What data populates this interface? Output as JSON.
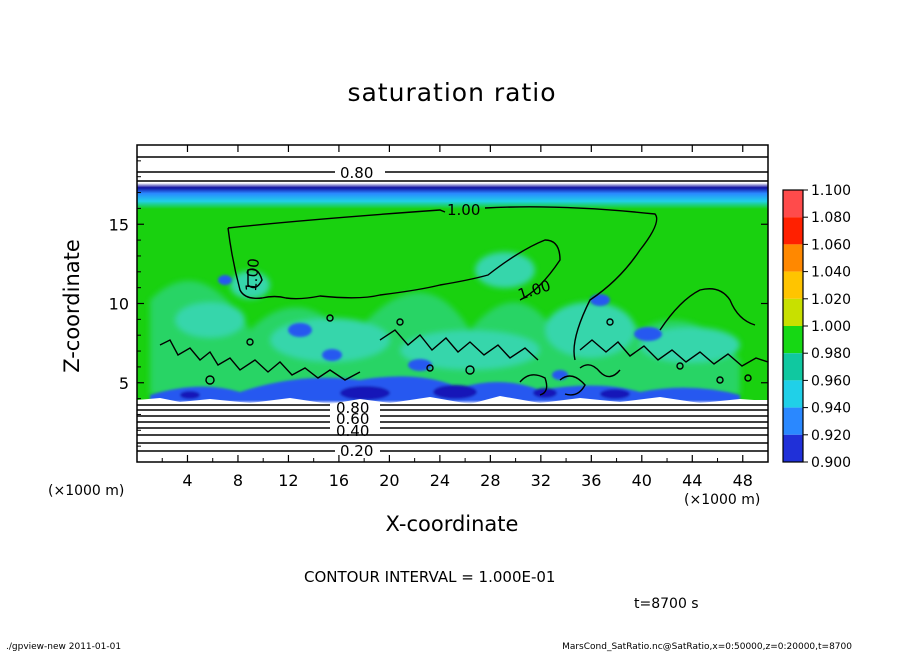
{
  "chart_data": {
    "type": "heatmap",
    "title": "saturation ratio",
    "xlabel": "X-coordinate",
    "ylabel": "Z-coordinate",
    "x_unit": "(×1000 m)",
    "z_unit": "(×1000 m)",
    "xlim": [
      0,
      50
    ],
    "ylim": [
      0,
      20
    ],
    "x_ticks": [
      "4",
      "8",
      "12",
      "16",
      "20",
      "24",
      "28",
      "32",
      "36",
      "40",
      "44",
      "48"
    ],
    "y_ticks": [
      "5",
      "10",
      "15"
    ],
    "colorbar": {
      "levels": [
        "1.100",
        "1.080",
        "1.060",
        "1.040",
        "1.020",
        "1.000",
        "0.980",
        "0.960",
        "0.940",
        "0.920",
        "0.900"
      ],
      "colors": [
        "#ff8c8c",
        "#ff4b4b",
        "#ff2000",
        "#ff8800",
        "#ffc400",
        "#c8e000",
        "#16d814",
        "#10c8a0",
        "#20d0e8",
        "#2a88ff",
        "#2030d8",
        "#1010a0",
        "#5a14a0"
      ]
    },
    "field": {
      "background_value": 1.0,
      "upper_boundary_km": 17.3,
      "lower_dry_layer_km": 3.8,
      "contour_labels": [
        "0.80",
        "1.00",
        "1.00",
        "1.00",
        "0.80",
        "0.60",
        "0.40",
        "0.20"
      ],
      "contour_interval": 0.1
    },
    "colors": {
      "green": "#19d10f",
      "cyan": "#3fd8e0",
      "blue": "#2858f0",
      "navy": "#1818b8"
    }
  },
  "text": {
    "contour_interval": "CONTOUR INTERVAL = 1.000E-01",
    "time": "t=8700 s",
    "footer_left": "./gpview-new  2011-01-01",
    "footer_right": "MarsCond_SatRatio.nc@SatRatio,x=0:50000,z=0:20000,t=8700"
  }
}
